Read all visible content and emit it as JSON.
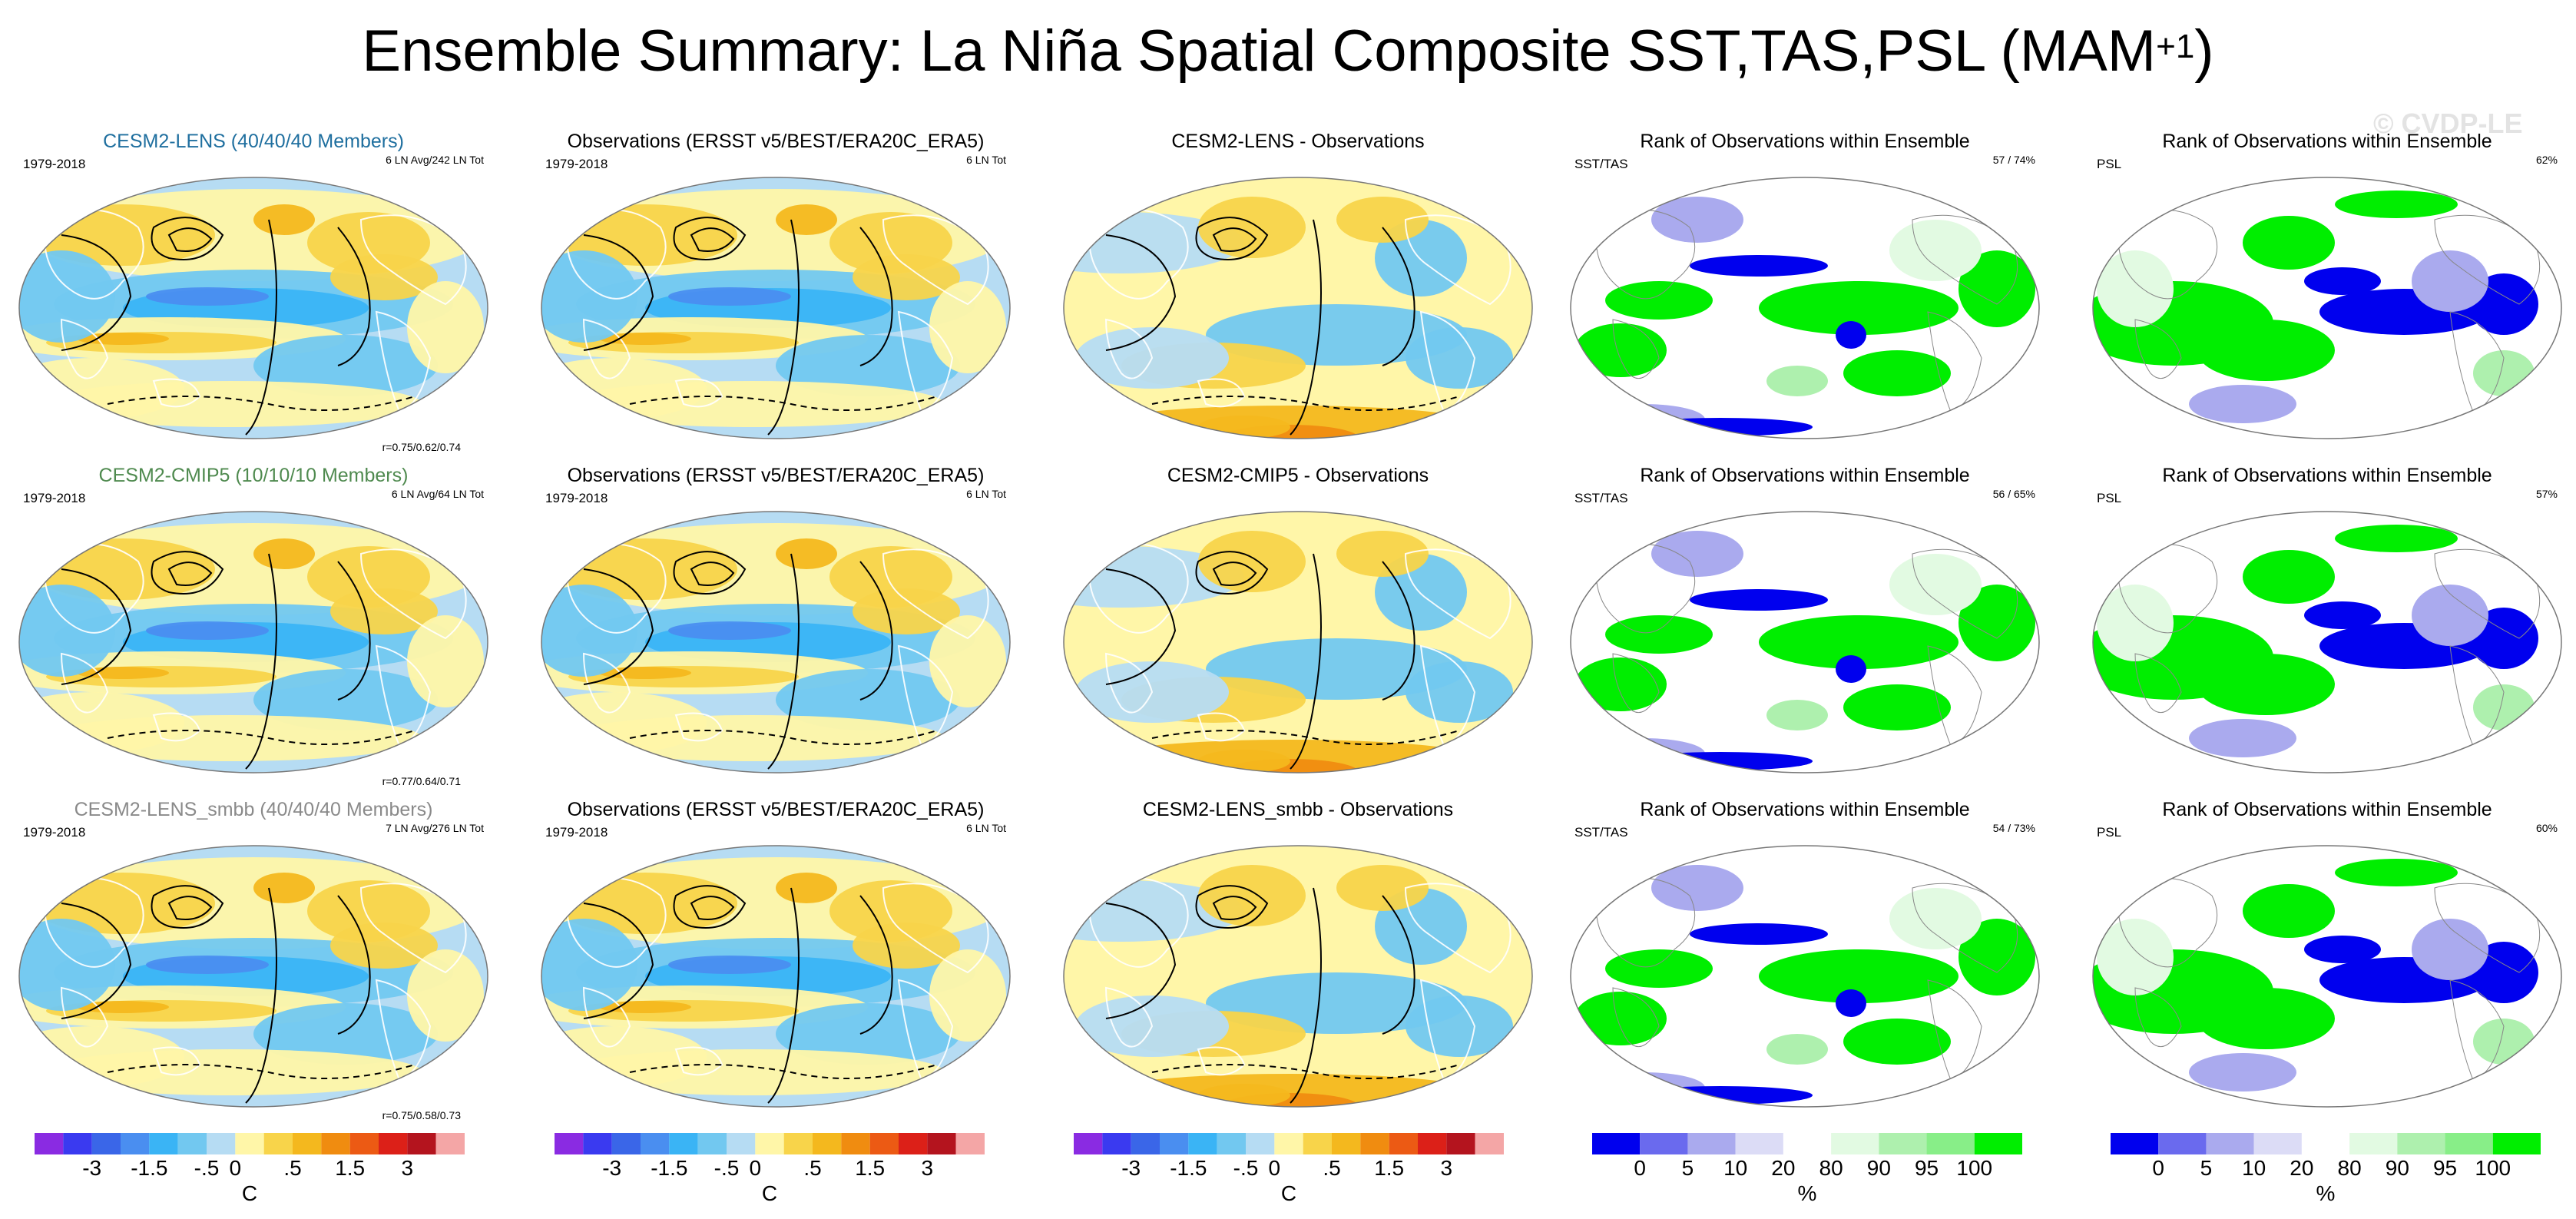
{
  "title": {
    "main": "Ensemble Summary: La Niña Spatial Composite SST,TAS,PSL (MAM",
    "sup": "+1",
    "close": ")"
  },
  "watermark": "© CVDP-LE",
  "rows": [
    {
      "model": {
        "title": "CESM2-LENS (40/40/40 Members)",
        "title_color": "#1f6f9f",
        "period": "1979-2018",
        "count": "6 LN Avg/242 LN Tot",
        "corr": "r=0.75/0.62/0.74"
      },
      "obs": {
        "title": "Observations (ERSST v5/BEST/ERA20C_ERA5)",
        "period": "1979-2018",
        "count": "6 LN Tot"
      },
      "diff": {
        "title": "CESM2-LENS - Observations"
      },
      "rank_sst": {
        "title": "Rank of Observations within Ensemble",
        "label": "SST/TAS",
        "pct": "57 /  74%"
      },
      "rank_psl": {
        "title": "Rank of Observations within Ensemble",
        "label": "PSL",
        "pct": "62%"
      }
    },
    {
      "model": {
        "title": "CESM2-CMIP5 (10/10/10 Members)",
        "title_color": "#4f8a4f",
        "period": "1979-2018",
        "count": "6 LN Avg/64 LN Tot",
        "corr": "r=0.77/0.64/0.71"
      },
      "obs": {
        "title": "Observations (ERSST v5/BEST/ERA20C_ERA5)",
        "period": "1979-2018",
        "count": "6 LN Tot"
      },
      "diff": {
        "title": "CESM2-CMIP5 - Observations"
      },
      "rank_sst": {
        "title": "Rank of Observations within Ensemble",
        "label": "SST/TAS",
        "pct": "56 /  65%"
      },
      "rank_psl": {
        "title": "Rank of Observations within Ensemble",
        "label": "PSL",
        "pct": "57%"
      }
    },
    {
      "model": {
        "title": "CESM2-LENS_smbb (40/40/40 Members)",
        "title_color": "#8a8a8a",
        "period": "1979-2018",
        "count": "7 LN Avg/276 LN Tot",
        "corr": "r=0.75/0.58/0.73"
      },
      "obs": {
        "title": "Observations (ERSST v5/BEST/ERA20C_ERA5)",
        "period": "1979-2018",
        "count": "6 LN Tot"
      },
      "diff": {
        "title": "CESM2-LENS_smbb - Observations"
      },
      "rank_sst": {
        "title": "Rank of Observations within Ensemble",
        "label": "SST/TAS",
        "pct": "54 /  73%"
      },
      "rank_psl": {
        "title": "Rank of Observations within Ensemble",
        "label": "PSL",
        "pct": "60%"
      }
    }
  ],
  "colorbars": {
    "temp": {
      "colors": [
        "#8a2be2",
        "#3a3af0",
        "#3a66e8",
        "#4a8ef0",
        "#3ab4f5",
        "#72c8f0",
        "#b6dcf3",
        "#fff6a8",
        "#f8d44a",
        "#f4b81e",
        "#f08c10",
        "#ec5a14",
        "#dc2018",
        "#b4141e",
        "#f4a6a6"
      ],
      "labels": [
        "-3",
        "-1.5",
        "-.5",
        "0",
        ".5",
        "1.5",
        "3"
      ],
      "unit": "C"
    },
    "rank": {
      "colors": [
        "#0000ee",
        "#6a6aee",
        "#aaaaee",
        "#dcdcf6",
        "#ffffff",
        "#e2fae2",
        "#aef0ae",
        "#88ee88",
        "#00ee00"
      ],
      "labels": [
        "0",
        "5",
        "10",
        "20",
        "80",
        "90",
        "95",
        "100"
      ],
      "unit": "%"
    }
  }
}
